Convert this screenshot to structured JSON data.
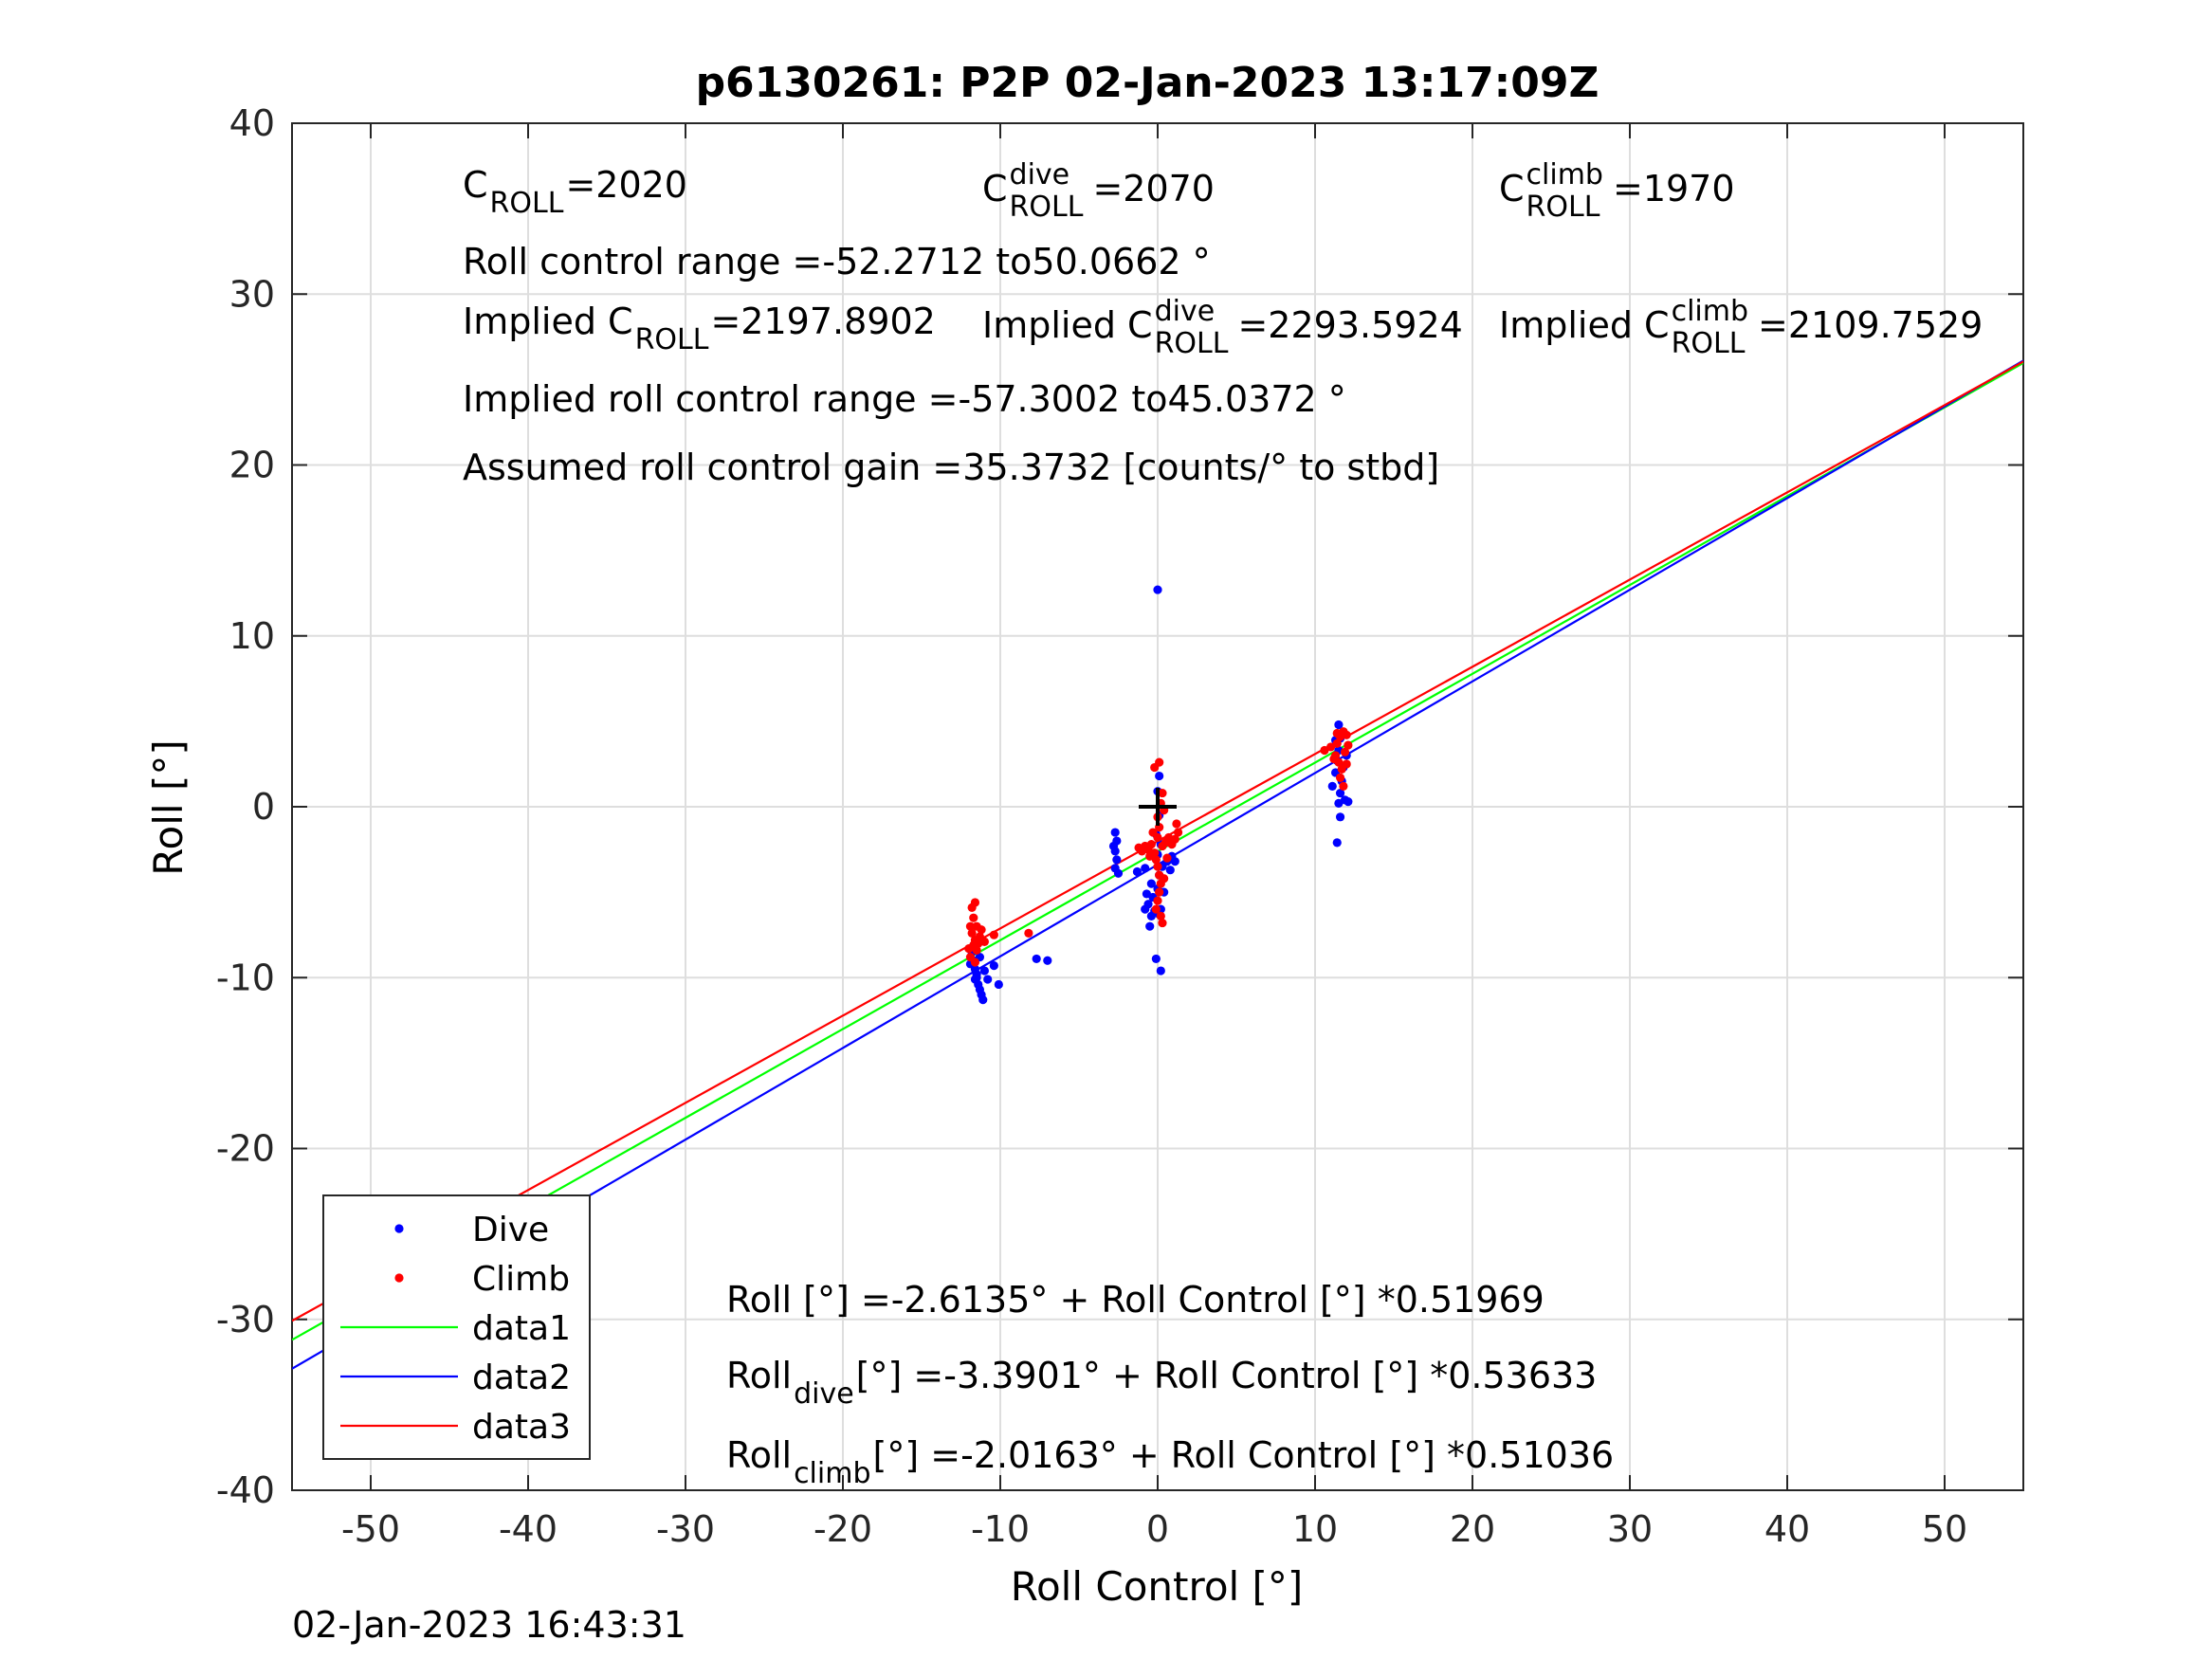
{
  "chart_data": {
    "type": "scatter",
    "title": "p6130261: P2P 02-Jan-2023 13:17:09Z",
    "xlabel": "Roll Control [°]",
    "ylabel": "Roll [°]",
    "xlim": [
      -55,
      55
    ],
    "ylim": [
      -40,
      40
    ],
    "xticks": [
      -50,
      -40,
      -30,
      -20,
      -10,
      0,
      10,
      20,
      30,
      40,
      50
    ],
    "yticks": [
      -40,
      -30,
      -20,
      -10,
      0,
      10,
      20,
      30,
      40
    ],
    "grid": true,
    "legend_position": "bottom-left",
    "timestamp": "02-Jan-2023 16:43:31",
    "annotations": {
      "c_roll": {
        "main": "C",
        "sub": "ROLL",
        "value": "=2020"
      },
      "c_roll_dive": {
        "main": "C",
        "sup": "dive",
        "sub": "ROLL",
        "value": "=2070"
      },
      "c_roll_climb": {
        "main": "C",
        "sup": "climb",
        "sub": "ROLL",
        "value": "=1970"
      },
      "roll_control_range": "Roll control range =-52.2712 to50.0662 °",
      "implied_c_roll": {
        "main": "Implied C",
        "sub": "ROLL",
        "value": "=2197.8902"
      },
      "implied_c_roll_dive": {
        "main": "Implied C",
        "sup": "dive",
        "sub": "ROLL",
        "value": "=2293.5924"
      },
      "implied_c_roll_climb": {
        "main": "Implied C",
        "sup": "climb",
        "sub": "ROLL",
        "value": "=2109.7529"
      },
      "implied_range": "Implied roll control range =-57.3002 to45.0372 °",
      "assumed_gain": "Assumed roll control gain =35.3732 [counts/° to stbd]",
      "fit_all": "Roll [°] =-2.6135° + Roll Control [°] *0.51969",
      "fit_dive": {
        "main": "Roll",
        "sub": "dive",
        "rest": " [°] =-3.3901° + Roll Control [°] *0.53633"
      },
      "fit_climb": {
        "main": "Roll",
        "sub": "climb",
        "rest": " [°] =-2.0163° + Roll Control [°] *0.51036"
      }
    },
    "center_marker": {
      "x": 0,
      "y": 0
    },
    "series": [
      {
        "name": "Dive",
        "kind": "points",
        "color": "#0000ff",
        "points": [
          [
            -11.8,
            -8.5
          ],
          [
            -11.7,
            -9.0
          ],
          [
            -11.6,
            -9.5
          ],
          [
            -11.5,
            -9.8
          ],
          [
            -11.6,
            -10.1
          ],
          [
            -11.4,
            -10.4
          ],
          [
            -11.3,
            -10.7
          ],
          [
            -11.2,
            -11.0
          ],
          [
            -11.1,
            -11.3
          ],
          [
            -11.5,
            -10.0
          ],
          [
            -11.9,
            -9.2
          ],
          [
            -11.0,
            -9.6
          ],
          [
            -10.8,
            -10.1
          ],
          [
            -10.4,
            -9.3
          ],
          [
            -10.1,
            -10.4
          ],
          [
            -11.3,
            -8.8
          ],
          [
            -7.7,
            -8.9
          ],
          [
            -7.0,
            -9.0
          ],
          [
            -2.7,
            -1.5
          ],
          [
            -2.6,
            -2.0
          ],
          [
            -2.7,
            -2.6
          ],
          [
            -2.6,
            -3.1
          ],
          [
            -2.7,
            -3.6
          ],
          [
            -2.5,
            -3.9
          ],
          [
            -2.8,
            -2.3
          ],
          [
            -1.3,
            -3.8
          ],
          [
            -0.8,
            -3.6
          ],
          [
            -0.7,
            -5.1
          ],
          [
            -0.6,
            -5.7
          ],
          [
            -0.8,
            -6.0
          ],
          [
            -0.4,
            -6.4
          ],
          [
            -0.5,
            -7.0
          ],
          [
            -0.3,
            -5.3
          ],
          [
            -0.2,
            -6.1
          ],
          [
            0.1,
            -6.3
          ],
          [
            0.2,
            -6.0
          ],
          [
            0.0,
            -4.8
          ],
          [
            0.1,
            -4.0
          ],
          [
            0.3,
            -3.5
          ],
          [
            0.0,
            -2.8
          ],
          [
            0.2,
            -2.2
          ],
          [
            -0.1,
            -1.6
          ],
          [
            0.1,
            -0.5
          ],
          [
            0.0,
            0.9
          ],
          [
            0.1,
            1.8
          ],
          [
            0.0,
            12.7
          ],
          [
            -0.1,
            -8.9
          ],
          [
            0.2,
            -9.6
          ],
          [
            0.6,
            -3.2
          ],
          [
            0.9,
            -2.9
          ],
          [
            0.8,
            -3.7
          ],
          [
            1.1,
            -3.2
          ],
          [
            -0.4,
            -4.5
          ],
          [
            0.4,
            -5.0
          ],
          [
            11.1,
            1.2
          ],
          [
            11.3,
            2.0
          ],
          [
            11.4,
            2.7
          ],
          [
            11.5,
            3.3
          ],
          [
            11.6,
            4.0
          ],
          [
            11.5,
            4.8
          ],
          [
            11.7,
            1.5
          ],
          [
            11.6,
            0.8
          ],
          [
            11.5,
            0.2
          ],
          [
            11.6,
            -0.6
          ],
          [
            11.4,
            -2.1
          ],
          [
            11.9,
            0.4
          ],
          [
            12.1,
            0.3
          ],
          [
            11.8,
            2.3
          ],
          [
            12.0,
            3.0
          ],
          [
            11.3,
            3.9
          ]
        ]
      },
      {
        "name": "Climb",
        "kind": "points",
        "color": "#ff0000",
        "points": [
          [
            -11.8,
            -5.9
          ],
          [
            -11.6,
            -5.6
          ],
          [
            -11.7,
            -6.5
          ],
          [
            -11.5,
            -7.0
          ],
          [
            -11.8,
            -7.4
          ],
          [
            -11.6,
            -7.8
          ],
          [
            -11.7,
            -8.1
          ],
          [
            -11.5,
            -8.4
          ],
          [
            -11.9,
            -8.8
          ],
          [
            -11.4,
            -8.0
          ],
          [
            -11.3,
            -7.6
          ],
          [
            -11.6,
            -9.1
          ],
          [
            -11.2,
            -7.2
          ],
          [
            -11.0,
            -7.9
          ],
          [
            -10.4,
            -7.5
          ],
          [
            -12.0,
            -8.3
          ],
          [
            -11.9,
            -7.0
          ],
          [
            -8.2,
            -7.4
          ],
          [
            -1.2,
            -2.4
          ],
          [
            -1.0,
            -2.6
          ],
          [
            -0.8,
            -2.3
          ],
          [
            -0.6,
            -2.5
          ],
          [
            -0.4,
            -2.2
          ],
          [
            -0.2,
            -2.7
          ],
          [
            -0.1,
            -3.1
          ],
          [
            0.0,
            -3.5
          ],
          [
            0.1,
            -4.0
          ],
          [
            0.2,
            -4.5
          ],
          [
            0.1,
            -5.0
          ],
          [
            0.0,
            -5.5
          ],
          [
            -0.1,
            -6.0
          ],
          [
            0.2,
            -6.4
          ],
          [
            0.3,
            -6.8
          ],
          [
            0.0,
            -1.8
          ],
          [
            0.1,
            -1.2
          ],
          [
            0.0,
            -0.6
          ],
          [
            0.2,
            0.2
          ],
          [
            0.3,
            0.8
          ],
          [
            -0.2,
            2.3
          ],
          [
            0.1,
            2.6
          ],
          [
            0.3,
            -2.3
          ],
          [
            0.5,
            -2.1
          ],
          [
            0.7,
            -1.8
          ],
          [
            0.9,
            -2.2
          ],
          [
            1.1,
            -1.9
          ],
          [
            1.3,
            -1.5
          ],
          [
            1.2,
            -1.0
          ],
          [
            0.4,
            -0.2
          ],
          [
            -0.3,
            -1.5
          ],
          [
            0.6,
            -3.0
          ],
          [
            -0.5,
            -2.9
          ],
          [
            0.4,
            -4.2
          ],
          [
            10.6,
            3.3
          ],
          [
            11.0,
            3.5
          ],
          [
            11.3,
            3.0
          ],
          [
            11.4,
            3.7
          ],
          [
            11.6,
            4.1
          ],
          [
            11.8,
            4.4
          ],
          [
            11.5,
            2.6
          ],
          [
            11.7,
            2.2
          ],
          [
            11.6,
            1.7
          ],
          [
            11.9,
            3.2
          ],
          [
            12.1,
            3.6
          ],
          [
            12.0,
            4.2
          ],
          [
            11.2,
            2.8
          ],
          [
            11.8,
            1.2
          ],
          [
            12.0,
            2.5
          ],
          [
            11.4,
            4.3
          ]
        ]
      },
      {
        "name": "data1",
        "kind": "line",
        "color": "#00ff00",
        "x": [
          -55,
          55
        ],
        "y": [
          -31.197,
          25.97
        ]
      },
      {
        "name": "data2",
        "kind": "line",
        "color": "#0000ff",
        "x": [
          -55,
          55
        ],
        "y": [
          -32.888,
          26.108
        ]
      },
      {
        "name": "data3",
        "kind": "line",
        "color": "#ff0000",
        "x": [
          -55,
          55
        ],
        "y": [
          -30.086,
          26.053
        ]
      }
    ]
  }
}
